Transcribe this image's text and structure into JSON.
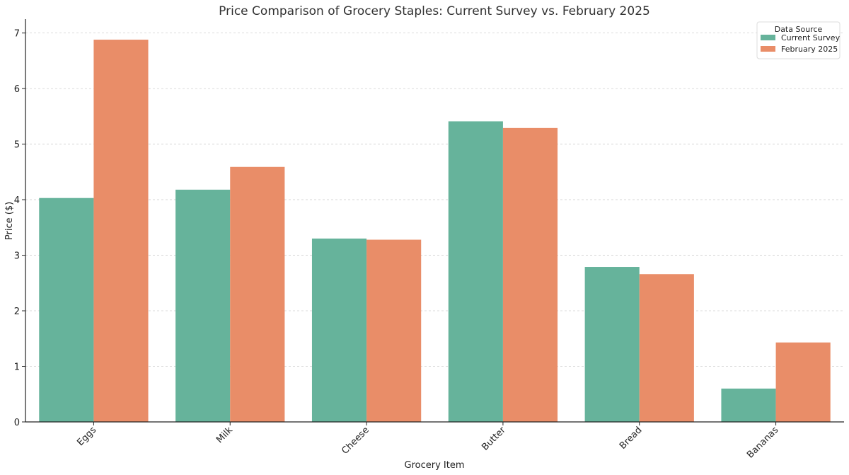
{
  "chart_data": {
    "type": "bar",
    "title": "Price Comparison of Grocery Staples: Current Survey vs. February 2025",
    "xlabel": "Grocery Item",
    "ylabel": "Price ($)",
    "ylim": [
      0,
      7.25
    ],
    "yticks": [
      0,
      1,
      2,
      3,
      4,
      5,
      6,
      7
    ],
    "grid": "horizontal dashed",
    "categories": [
      "Eggs",
      "Milk",
      "Cheese",
      "Butter",
      "Bread",
      "Bananas"
    ],
    "legend": {
      "title": "Data Source",
      "placement": "top-right"
    },
    "series": [
      {
        "name": "Current Survey",
        "color": "#66b39b",
        "values": [
          4.03,
          4.18,
          3.3,
          5.41,
          2.79,
          0.6
        ]
      },
      {
        "name": "February 2025",
        "color": "#e98d68",
        "values": [
          6.88,
          4.59,
          3.28,
          5.29,
          2.66,
          1.43
        ]
      }
    ]
  }
}
